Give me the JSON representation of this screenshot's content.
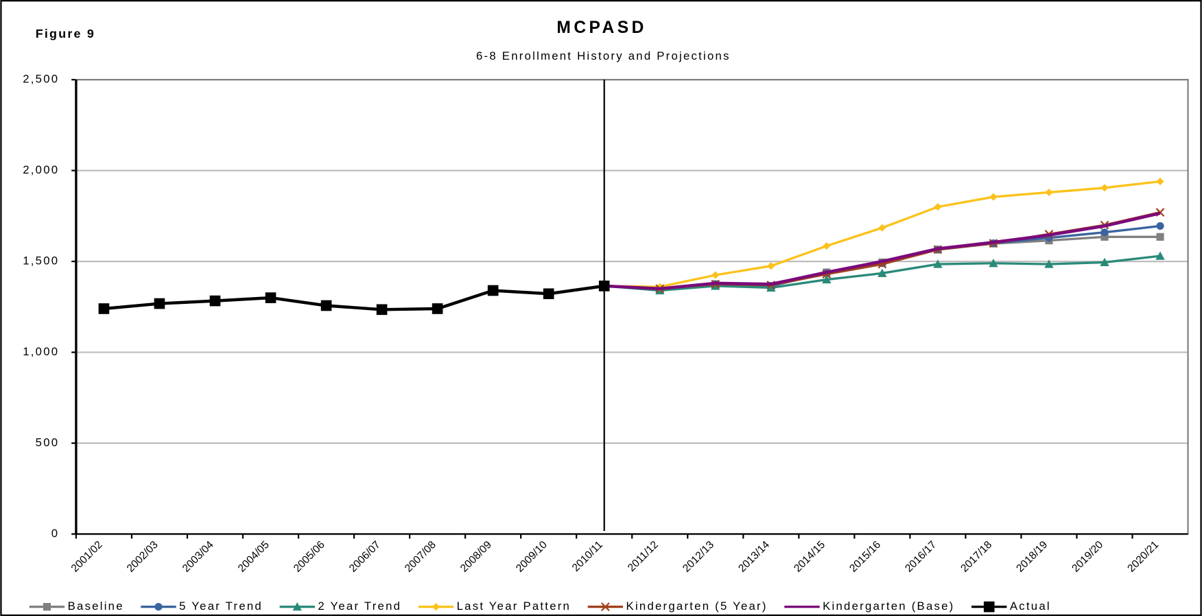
{
  "chart_data": {
    "type": "line",
    "figure_label": "Figure 9",
    "title": "MCPASD",
    "subtitle": "6-8 Enrollment History and Projections",
    "categories": [
      "2001/02",
      "2002/03",
      "2003/04",
      "2004/05",
      "2005/06",
      "2006/07",
      "2007/08",
      "2008/09",
      "2009/10",
      "2010/11",
      "2011/12",
      "2012/13",
      "2013/14",
      "2014/15",
      "2015/16",
      "2016/17",
      "2017/18",
      "2018/19",
      "2019/20",
      "2020/21"
    ],
    "ylim": [
      0,
      2500
    ],
    "yticks": [
      0,
      {
        "value": 500,
        "label": "500"
      },
      {
        "value": 1000,
        "label": "1,000"
      },
      {
        "value": 1500,
        "label": "1,500"
      },
      {
        "value": 2000,
        "label": "2,000"
      },
      {
        "value": 2500,
        "label": "2,500"
      }
    ],
    "grid": true,
    "series": [
      {
        "name": "Baseline",
        "color": "#808080",
        "marker": "square",
        "values": [
          null,
          null,
          null,
          null,
          null,
          null,
          null,
          null,
          null,
          1365,
          1345,
          1375,
          1365,
          1440,
          1495,
          1565,
          1598,
          1615,
          1635,
          1635
        ]
      },
      {
        "name": "5 Year Trend",
        "color": "#3a64a0",
        "marker": "circle",
        "values": [
          null,
          null,
          null,
          null,
          null,
          null,
          null,
          null,
          null,
          1365,
          1345,
          1375,
          1365,
          1435,
          1490,
          1565,
          1600,
          1630,
          1660,
          1695
        ]
      },
      {
        "name": "2 Year Trend",
        "color": "#2a8a7a",
        "marker": "triangle",
        "values": [
          null,
          null,
          null,
          null,
          null,
          null,
          null,
          null,
          null,
          1365,
          1340,
          1365,
          1355,
          1400,
          1435,
          1485,
          1490,
          1485,
          1495,
          1530
        ]
      },
      {
        "name": "Last Year Pattern",
        "color": "#fcc21b",
        "marker": "diamond",
        "values": [
          null,
          null,
          null,
          null,
          null,
          null,
          null,
          null,
          null,
          1365,
          1360,
          1425,
          1475,
          1585,
          1685,
          1800,
          1855,
          1880,
          1905,
          1940
        ]
      },
      {
        "name": "Kindergarten (5 Year)",
        "color": "#a0401c",
        "marker": "x",
        "values": [
          null,
          null,
          null,
          null,
          null,
          null,
          null,
          null,
          null,
          1365,
          1350,
          1375,
          1370,
          1430,
          1485,
          1565,
          1600,
          1650,
          1700,
          1770
        ]
      },
      {
        "name": "Kindergarten (Base)",
        "color": "#7b0a7b",
        "marker": "none",
        "values": [
          null,
          null,
          null,
          null,
          null,
          null,
          null,
          null,
          null,
          1365,
          1350,
          1380,
          1375,
          1440,
          1500,
          1570,
          1605,
          1645,
          1695,
          1765
        ]
      },
      {
        "name": "Actual",
        "color": "#000000",
        "marker": "bigsquare",
        "values": [
          1240,
          1268,
          1283,
          1300,
          1257,
          1235,
          1240,
          1340,
          1322,
          1365,
          null,
          null,
          null,
          null,
          null,
          null,
          null,
          null,
          null,
          null
        ]
      }
    ]
  }
}
